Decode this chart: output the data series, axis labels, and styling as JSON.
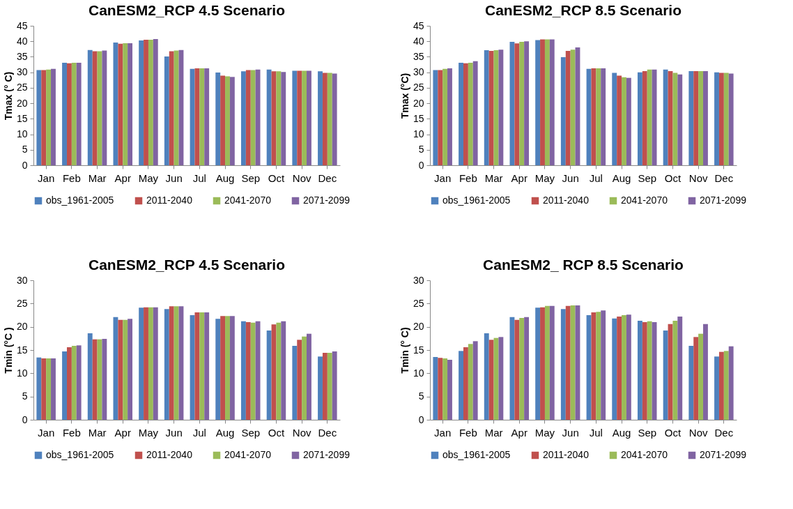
{
  "chart_data": [
    {
      "type": "bar",
      "title": "CanESM2_RCP  4.5 Scenario",
      "ylabel": "Tmax (° C)",
      "categories": [
        "Jan",
        "Feb",
        "Mar",
        "Apr",
        "May",
        "Jun",
        "Jul",
        "Aug",
        "Sep",
        "Oct",
        "Nov",
        "Dec"
      ],
      "ylim": [
        0,
        45
      ],
      "yticks": [
        0,
        5,
        10,
        15,
        20,
        25,
        30,
        35,
        40,
        45
      ],
      "legend": "bottom",
      "series": [
        {
          "name": "obs_1961-2005",
          "color": "#4f81bd",
          "values": [
            30.7,
            33.1,
            37.2,
            39.6,
            40.3,
            35.1,
            31.1,
            29.9,
            30.3,
            30.9,
            30.5,
            30.3
          ]
        },
        {
          "name": "2011-2040",
          "color": "#c0504d",
          "values": [
            30.7,
            32.9,
            36.8,
            39.2,
            40.5,
            36.8,
            31.3,
            28.9,
            30.7,
            30.3,
            30.5,
            29.8
          ]
        },
        {
          "name": "2041-2070",
          "color": "#9bbb59",
          "values": [
            30.9,
            33.1,
            36.8,
            39.4,
            40.5,
            37.0,
            31.3,
            28.7,
            30.7,
            30.3,
            30.5,
            29.8
          ]
        },
        {
          "name": "2071-2099",
          "color": "#8064a2",
          "values": [
            31.1,
            33.1,
            37.0,
            39.4,
            40.7,
            37.2,
            31.3,
            28.5,
            30.9,
            30.1,
            30.5,
            29.6
          ]
        }
      ]
    },
    {
      "type": "bar",
      "title": "CanESM2_RCP  8.5 Scenario",
      "ylabel": "Tmax (°C)",
      "categories": [
        "Jan",
        "Feb",
        "Mar",
        "Apr",
        "May",
        "Jun",
        "Jul",
        "Aug",
        "Sep",
        "Oct",
        "Nov",
        "Dec"
      ],
      "ylim": [
        0,
        45
      ],
      "yticks": [
        0,
        5,
        10,
        15,
        20,
        25,
        30,
        35,
        40,
        45
      ],
      "legend": "bottom",
      "series": [
        {
          "name": "obs_1961-2005",
          "color": "#4f81bd",
          "values": [
            30.7,
            33.1,
            37.1,
            39.8,
            40.4,
            34.9,
            31.1,
            29.8,
            30.0,
            30.9,
            30.4,
            30.0
          ]
        },
        {
          "name": "2011-2040",
          "color": "#c0504d",
          "values": [
            30.7,
            32.9,
            36.9,
            39.3,
            40.6,
            36.9,
            31.3,
            28.9,
            30.4,
            30.4,
            30.4,
            29.8
          ]
        },
        {
          "name": "2041-2070",
          "color": "#9bbb59",
          "values": [
            31.1,
            33.1,
            37.1,
            39.8,
            40.6,
            37.3,
            31.3,
            28.4,
            30.9,
            29.8,
            30.4,
            29.8
          ]
        },
        {
          "name": "2071-2099",
          "color": "#8064a2",
          "values": [
            31.3,
            33.6,
            37.3,
            40.0,
            40.6,
            38.0,
            31.3,
            28.2,
            30.9,
            29.3,
            30.4,
            29.6
          ]
        }
      ]
    },
    {
      "type": "bar",
      "title": "CanESM2_RCP  4.5 Scenario",
      "ylabel": "Tmin (°C )",
      "categories": [
        "Jan",
        "Feb",
        "Mar",
        "Apr",
        "May",
        "Jun",
        "Jul",
        "Aug",
        "Sep",
        "Oct",
        "Nov",
        "Dec"
      ],
      "ylim": [
        0,
        30
      ],
      "yticks": [
        0,
        5,
        10,
        15,
        20,
        25,
        30
      ],
      "legend": "bottom",
      "series": [
        {
          "name": "obs_1961-2005",
          "color": "#4f81bd",
          "values": [
            13.4,
            14.7,
            18.6,
            22.1,
            24.1,
            23.8,
            22.5,
            21.7,
            21.2,
            19.2,
            15.9,
            13.6
          ]
        },
        {
          "name": "2011-2040",
          "color": "#c0504d",
          "values": [
            13.2,
            15.6,
            17.3,
            21.5,
            24.2,
            24.4,
            23.1,
            22.3,
            21.0,
            20.5,
            17.2,
            14.4
          ]
        },
        {
          "name": "2041-2070",
          "color": "#9bbb59",
          "values": [
            13.2,
            15.9,
            17.3,
            21.5,
            24.2,
            24.4,
            23.1,
            22.3,
            20.9,
            20.9,
            17.9,
            14.4
          ]
        },
        {
          "name": "2071-2099",
          "color": "#8064a2",
          "values": [
            13.2,
            16.0,
            17.4,
            21.7,
            24.2,
            24.4,
            23.1,
            22.3,
            21.2,
            21.2,
            18.5,
            14.7
          ]
        }
      ]
    },
    {
      "type": "bar",
      "title": "CanESM2_ RCP 8.5 Scenario",
      "ylabel": "Tmin (° C)",
      "categories": [
        "Jan",
        "Feb",
        "Mar",
        "Apr",
        "May",
        "Jun",
        "Jul",
        "Aug",
        "Sep",
        "Oct",
        "Nov",
        "Dec"
      ],
      "ylim": [
        0,
        30
      ],
      "yticks": [
        0,
        5,
        10,
        15,
        20,
        25,
        30
      ],
      "legend": "bottom",
      "series": [
        {
          "name": "obs_1961-2005",
          "color": "#4f81bd",
          "values": [
            13.5,
            14.8,
            18.6,
            22.1,
            24.1,
            23.8,
            22.5,
            21.8,
            21.3,
            19.2,
            15.9,
            13.6
          ]
        },
        {
          "name": "2011-2040",
          "color": "#c0504d",
          "values": [
            13.3,
            15.6,
            17.2,
            21.5,
            24.2,
            24.5,
            23.1,
            22.2,
            21.0,
            20.6,
            17.8,
            14.6
          ]
        },
        {
          "name": "2041-2070",
          "color": "#9bbb59",
          "values": [
            13.2,
            16.3,
            17.6,
            21.9,
            24.5,
            24.6,
            23.2,
            22.5,
            21.2,
            21.3,
            18.5,
            14.8
          ]
        },
        {
          "name": "2071-2099",
          "color": "#8064a2",
          "values": [
            12.9,
            16.9,
            17.8,
            22.1,
            24.5,
            24.6,
            23.5,
            22.6,
            21.0,
            22.2,
            20.6,
            15.8
          ]
        }
      ]
    }
  ]
}
